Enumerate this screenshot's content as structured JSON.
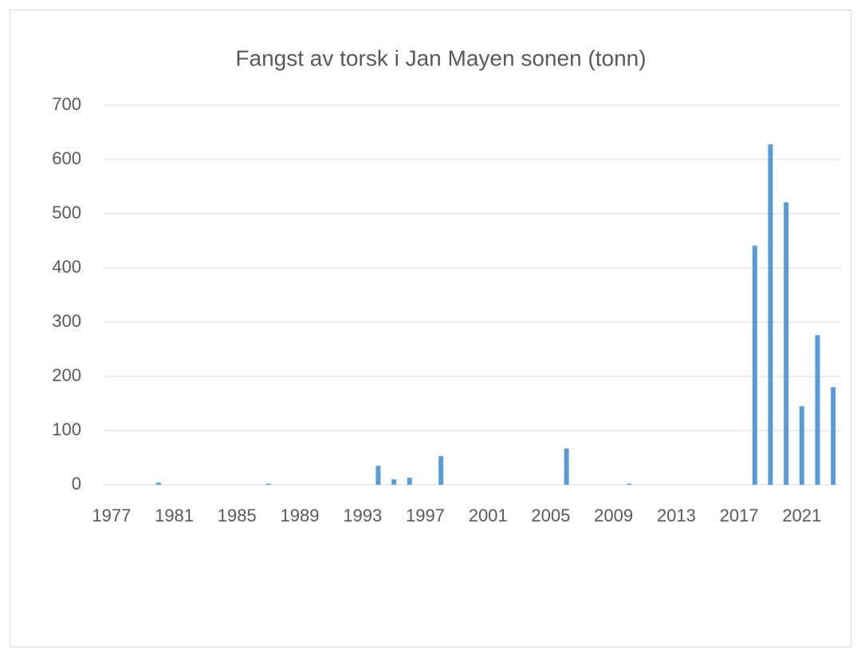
{
  "chart_data": {
    "type": "bar",
    "title": "Fangst av torsk i Jan Mayen sonen (tonn)",
    "categories": [
      "1977",
      null,
      null,
      null,
      "1981",
      null,
      null,
      null,
      "1985",
      null,
      null,
      null,
      "1989",
      null,
      null,
      null,
      "1993",
      null,
      null,
      null,
      "1997",
      null,
      null,
      null,
      "2001",
      null,
      null,
      null,
      "2005",
      null,
      null,
      null,
      "2009",
      null,
      null,
      null,
      "2013",
      null,
      null,
      null,
      "2017",
      null,
      null,
      null,
      "2021",
      null,
      null
    ],
    "values": [
      0,
      0,
      0,
      4,
      0,
      0,
      0,
      0,
      0,
      0,
      2,
      0,
      0,
      0,
      0,
      0,
      0,
      35,
      10,
      13,
      0,
      53,
      0,
      0,
      0,
      0,
      0,
      0,
      0,
      67,
      0,
      0,
      0,
      2,
      0,
      0,
      0,
      0,
      0,
      0,
      0,
      441,
      628,
      521,
      145,
      276,
      180
    ],
    "color": "#5b9bd5",
    "ylim": [
      0,
      700
    ],
    "yticks": [
      0,
      100,
      200,
      300,
      400,
      500,
      600,
      700
    ],
    "grid": true
  }
}
